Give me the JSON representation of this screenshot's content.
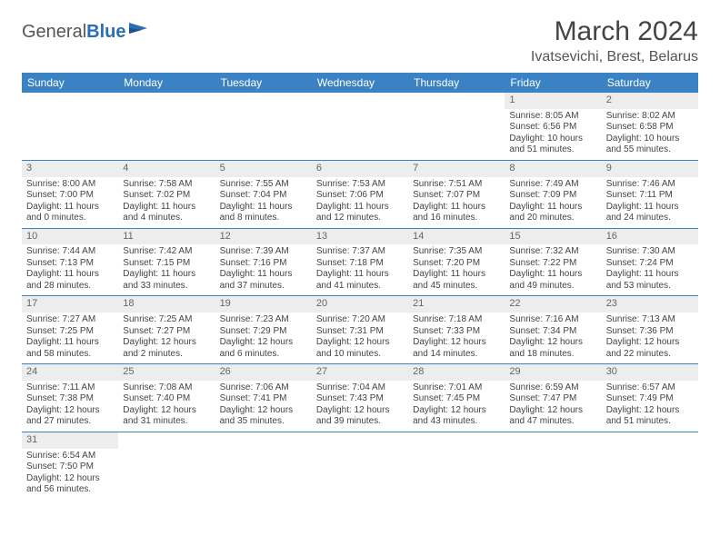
{
  "header": {
    "logo_part1": "General",
    "logo_part2": "Blue",
    "month_title": "March 2024",
    "location": "Ivatsevichi, Brest, Belarus"
  },
  "styling": {
    "header_bg": "#3b82c4",
    "header_fg": "#ffffff",
    "daynum_bg": "#ededed",
    "border_color": "#3b82c4",
    "body_bg": "#ffffff",
    "text_color": "#444444",
    "cell_font_size_pt": 7.5,
    "header_font_size_pt": 9,
    "title_font_size_pt": 22
  },
  "weekdays": [
    "Sunday",
    "Monday",
    "Tuesday",
    "Wednesday",
    "Thursday",
    "Friday",
    "Saturday"
  ],
  "weeks": [
    [
      null,
      null,
      null,
      null,
      null,
      {
        "n": "1",
        "sr": "Sunrise: 8:05 AM",
        "ss": "Sunset: 6:56 PM",
        "d1": "Daylight: 10 hours",
        "d2": "and 51 minutes."
      },
      {
        "n": "2",
        "sr": "Sunrise: 8:02 AM",
        "ss": "Sunset: 6:58 PM",
        "d1": "Daylight: 10 hours",
        "d2": "and 55 minutes."
      }
    ],
    [
      {
        "n": "3",
        "sr": "Sunrise: 8:00 AM",
        "ss": "Sunset: 7:00 PM",
        "d1": "Daylight: 11 hours",
        "d2": "and 0 minutes."
      },
      {
        "n": "4",
        "sr": "Sunrise: 7:58 AM",
        "ss": "Sunset: 7:02 PM",
        "d1": "Daylight: 11 hours",
        "d2": "and 4 minutes."
      },
      {
        "n": "5",
        "sr": "Sunrise: 7:55 AM",
        "ss": "Sunset: 7:04 PM",
        "d1": "Daylight: 11 hours",
        "d2": "and 8 minutes."
      },
      {
        "n": "6",
        "sr": "Sunrise: 7:53 AM",
        "ss": "Sunset: 7:06 PM",
        "d1": "Daylight: 11 hours",
        "d2": "and 12 minutes."
      },
      {
        "n": "7",
        "sr": "Sunrise: 7:51 AM",
        "ss": "Sunset: 7:07 PM",
        "d1": "Daylight: 11 hours",
        "d2": "and 16 minutes."
      },
      {
        "n": "8",
        "sr": "Sunrise: 7:49 AM",
        "ss": "Sunset: 7:09 PM",
        "d1": "Daylight: 11 hours",
        "d2": "and 20 minutes."
      },
      {
        "n": "9",
        "sr": "Sunrise: 7:46 AM",
        "ss": "Sunset: 7:11 PM",
        "d1": "Daylight: 11 hours",
        "d2": "and 24 minutes."
      }
    ],
    [
      {
        "n": "10",
        "sr": "Sunrise: 7:44 AM",
        "ss": "Sunset: 7:13 PM",
        "d1": "Daylight: 11 hours",
        "d2": "and 28 minutes."
      },
      {
        "n": "11",
        "sr": "Sunrise: 7:42 AM",
        "ss": "Sunset: 7:15 PM",
        "d1": "Daylight: 11 hours",
        "d2": "and 33 minutes."
      },
      {
        "n": "12",
        "sr": "Sunrise: 7:39 AM",
        "ss": "Sunset: 7:16 PM",
        "d1": "Daylight: 11 hours",
        "d2": "and 37 minutes."
      },
      {
        "n": "13",
        "sr": "Sunrise: 7:37 AM",
        "ss": "Sunset: 7:18 PM",
        "d1": "Daylight: 11 hours",
        "d2": "and 41 minutes."
      },
      {
        "n": "14",
        "sr": "Sunrise: 7:35 AM",
        "ss": "Sunset: 7:20 PM",
        "d1": "Daylight: 11 hours",
        "d2": "and 45 minutes."
      },
      {
        "n": "15",
        "sr": "Sunrise: 7:32 AM",
        "ss": "Sunset: 7:22 PM",
        "d1": "Daylight: 11 hours",
        "d2": "and 49 minutes."
      },
      {
        "n": "16",
        "sr": "Sunrise: 7:30 AM",
        "ss": "Sunset: 7:24 PM",
        "d1": "Daylight: 11 hours",
        "d2": "and 53 minutes."
      }
    ],
    [
      {
        "n": "17",
        "sr": "Sunrise: 7:27 AM",
        "ss": "Sunset: 7:25 PM",
        "d1": "Daylight: 11 hours",
        "d2": "and 58 minutes."
      },
      {
        "n": "18",
        "sr": "Sunrise: 7:25 AM",
        "ss": "Sunset: 7:27 PM",
        "d1": "Daylight: 12 hours",
        "d2": "and 2 minutes."
      },
      {
        "n": "19",
        "sr": "Sunrise: 7:23 AM",
        "ss": "Sunset: 7:29 PM",
        "d1": "Daylight: 12 hours",
        "d2": "and 6 minutes."
      },
      {
        "n": "20",
        "sr": "Sunrise: 7:20 AM",
        "ss": "Sunset: 7:31 PM",
        "d1": "Daylight: 12 hours",
        "d2": "and 10 minutes."
      },
      {
        "n": "21",
        "sr": "Sunrise: 7:18 AM",
        "ss": "Sunset: 7:33 PM",
        "d1": "Daylight: 12 hours",
        "d2": "and 14 minutes."
      },
      {
        "n": "22",
        "sr": "Sunrise: 7:16 AM",
        "ss": "Sunset: 7:34 PM",
        "d1": "Daylight: 12 hours",
        "d2": "and 18 minutes."
      },
      {
        "n": "23",
        "sr": "Sunrise: 7:13 AM",
        "ss": "Sunset: 7:36 PM",
        "d1": "Daylight: 12 hours",
        "d2": "and 22 minutes."
      }
    ],
    [
      {
        "n": "24",
        "sr": "Sunrise: 7:11 AM",
        "ss": "Sunset: 7:38 PM",
        "d1": "Daylight: 12 hours",
        "d2": "and 27 minutes."
      },
      {
        "n": "25",
        "sr": "Sunrise: 7:08 AM",
        "ss": "Sunset: 7:40 PM",
        "d1": "Daylight: 12 hours",
        "d2": "and 31 minutes."
      },
      {
        "n": "26",
        "sr": "Sunrise: 7:06 AM",
        "ss": "Sunset: 7:41 PM",
        "d1": "Daylight: 12 hours",
        "d2": "and 35 minutes."
      },
      {
        "n": "27",
        "sr": "Sunrise: 7:04 AM",
        "ss": "Sunset: 7:43 PM",
        "d1": "Daylight: 12 hours",
        "d2": "and 39 minutes."
      },
      {
        "n": "28",
        "sr": "Sunrise: 7:01 AM",
        "ss": "Sunset: 7:45 PM",
        "d1": "Daylight: 12 hours",
        "d2": "and 43 minutes."
      },
      {
        "n": "29",
        "sr": "Sunrise: 6:59 AM",
        "ss": "Sunset: 7:47 PM",
        "d1": "Daylight: 12 hours",
        "d2": "and 47 minutes."
      },
      {
        "n": "30",
        "sr": "Sunrise: 6:57 AM",
        "ss": "Sunset: 7:49 PM",
        "d1": "Daylight: 12 hours",
        "d2": "and 51 minutes."
      }
    ],
    [
      {
        "n": "31",
        "sr": "Sunrise: 6:54 AM",
        "ss": "Sunset: 7:50 PM",
        "d1": "Daylight: 12 hours",
        "d2": "and 56 minutes."
      },
      null,
      null,
      null,
      null,
      null,
      null
    ]
  ]
}
